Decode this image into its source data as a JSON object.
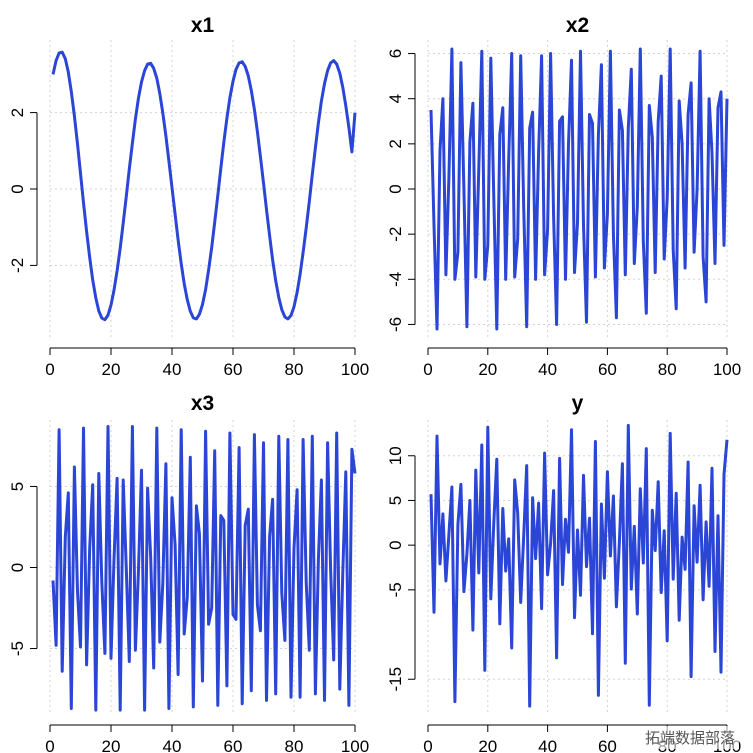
{
  "watermark": "拓端数据部落",
  "chart_data": [
    {
      "type": "line",
      "title": "x1",
      "xlabel": "",
      "ylabel": "",
      "xlim": [
        0,
        100
      ],
      "ylim": [
        -3.9,
        3.9
      ],
      "xticks": [
        0,
        20,
        40,
        60,
        80,
        100
      ],
      "yticks": [
        -2,
        0,
        2
      ],
      "color": "#2b45d6",
      "series": [
        {
          "x_start": 1,
          "x_end": 100,
          "n": 100,
          "values": [
            3.0,
            3.36,
            3.56,
            3.58,
            3.41,
            3.06,
            2.55,
            1.91,
            1.18,
            0.41,
            -0.36,
            -1.11,
            -1.79,
            -2.38,
            -2.85,
            -3.19,
            -3.38,
            -3.42,
            -3.3,
            -3.04,
            -2.65,
            -2.14,
            -1.55,
            -0.89,
            -0.19,
            0.52,
            1.2,
            1.83,
            2.37,
            2.8,
            3.1,
            3.27,
            3.29,
            3.16,
            2.9,
            2.5,
            1.99,
            1.39,
            0.73,
            0.04,
            -0.66,
            -1.33,
            -1.95,
            -2.48,
            -2.9,
            -3.2,
            -3.37,
            -3.4,
            -3.28,
            -3.02,
            -2.63,
            -2.12,
            -1.53,
            -0.87,
            -0.17,
            0.54,
            1.22,
            1.85,
            2.39,
            2.82,
            3.13,
            3.3,
            3.33,
            3.21,
            2.96,
            2.58,
            2.08,
            1.5,
            0.85,
            0.16,
            -0.54,
            -1.22,
            -1.85,
            -2.4,
            -2.84,
            -3.16,
            -3.35,
            -3.4,
            -3.31,
            -3.08,
            -2.71,
            -2.23,
            -1.66,
            -1.02,
            -0.33,
            0.38,
            1.08,
            1.73,
            2.3,
            2.76,
            3.1,
            3.3,
            3.36,
            3.27,
            3.03,
            2.66,
            2.18,
            1.61,
            0.97,
            2.0
          ]
        }
      ]
    },
    {
      "type": "line",
      "title": "x2",
      "xlabel": "",
      "ylabel": "",
      "xlim": [
        0,
        100
      ],
      "ylim": [
        -6.6,
        6.6
      ],
      "xticks": [
        0,
        20,
        40,
        60,
        80,
        100
      ],
      "yticks": [
        -6,
        -4,
        -2,
        0,
        2,
        4,
        6
      ],
      "color": "#2b45d6",
      "series": [
        {
          "x_start": 1,
          "x_end": 100,
          "n": 100,
          "values": [
            3.5,
            -1.6,
            -6.2,
            1.7,
            4.0,
            -3.8,
            0.5,
            6.2,
            -4.0,
            -2.8,
            5.6,
            0.0,
            -6.1,
            2.1,
            3.8,
            -3.9,
            0.9,
            6.1,
            -4.0,
            -2.5,
            5.8,
            -0.4,
            -6.2,
            2.4,
            3.6,
            -4.0,
            1.3,
            6.0,
            -3.9,
            -2.2,
            5.9,
            -0.8,
            -6.1,
            2.7,
            3.4,
            -4.0,
            1.6,
            5.9,
            -3.8,
            -1.8,
            6.0,
            -1.2,
            -6.0,
            3.0,
            3.2,
            -4.0,
            2.0,
            5.7,
            -3.7,
            -1.5,
            6.1,
            -1.6,
            -5.9,
            3.3,
            2.9,
            -3.9,
            2.4,
            5.5,
            -3.5,
            -1.1,
            6.1,
            -2.0,
            -5.7,
            3.5,
            2.6,
            -3.8,
            2.7,
            5.3,
            -3.3,
            -0.8,
            6.2,
            -2.3,
            -5.5,
            3.7,
            2.3,
            -3.7,
            3.0,
            5.0,
            -3.1,
            -0.4,
            6.2,
            -2.7,
            -5.3,
            3.9,
            2.0,
            -3.5,
            3.3,
            4.7,
            -2.8,
            0.0,
            6.1,
            -3.0,
            -5.0,
            4.0,
            1.6,
            -3.3,
            3.6,
            4.3,
            -2.5,
            4.0
          ]
        }
      ]
    },
    {
      "type": "line",
      "title": "x3",
      "xlabel": "",
      "ylabel": "",
      "xlim": [
        0,
        100
      ],
      "ylim": [
        -9.1,
        9.1
      ],
      "xticks": [
        0,
        20,
        40,
        60,
        80,
        100
      ],
      "yticks": [
        -5,
        0,
        5
      ],
      "color": "#2b45d6",
      "series": [
        {
          "x_start": 1,
          "x_end": 100,
          "n": 100,
          "values": [
            -0.8,
            -4.8,
            8.5,
            -6.4,
            1.9,
            4.6,
            -8.7,
            6.2,
            -1.5,
            -4.9,
            8.6,
            -6.0,
            1.2,
            5.1,
            -8.8,
            5.8,
            -0.9,
            -5.3,
            8.7,
            -5.6,
            0.5,
            5.5,
            -8.8,
            5.4,
            -0.1,
            -5.8,
            8.7,
            -5.1,
            -0.3,
            6.0,
            -8.8,
            4.9,
            0.6,
            -6.2,
            8.6,
            -4.6,
            -1.0,
            6.4,
            -8.7,
            4.3,
            1.4,
            -6.6,
            8.5,
            -4.1,
            -1.8,
            6.8,
            -8.6,
            3.8,
            2.1,
            -7.0,
            8.4,
            -3.5,
            -2.5,
            7.2,
            -8.5,
            3.2,
            2.9,
            -7.3,
            8.3,
            -2.9,
            -3.2,
            7.4,
            -8.4,
            2.6,
            3.6,
            -7.6,
            8.2,
            -2.3,
            -3.9,
            7.7,
            -8.2,
            1.9,
            4.2,
            -7.8,
            8.1,
            -1.6,
            -4.5,
            7.9,
            -8.0,
            1.2,
            4.8,
            -8.0,
            7.9,
            -0.9,
            -5.1,
            8.1,
            -7.8,
            0.5,
            5.4,
            -8.2,
            7.7,
            -0.1,
            -5.7,
            8.3,
            -7.5,
            -0.3,
            5.9,
            -8.5,
            7.3,
            5.8
          ]
        }
      ]
    },
    {
      "type": "line",
      "title": "y",
      "xlabel": "",
      "ylabel": "",
      "xlim": [
        0,
        100
      ],
      "ylim": [
        -19,
        14
      ],
      "xticks": [
        0,
        20,
        40,
        60,
        80,
        100
      ],
      "yticks": [
        -15,
        -5,
        0,
        5,
        10
      ],
      "color": "#2b45d6",
      "series": [
        {
          "x_start": 1,
          "x_end": 100,
          "n": 100,
          "values": [
            5.7,
            -7.5,
            12.2,
            -2.1,
            3.5,
            -4.0,
            1.2,
            6.5,
            -17.5,
            2.3,
            6.8,
            -5.2,
            -1.0,
            5.0,
            -9.5,
            8.4,
            -3.1,
            11.2,
            -14.0,
            13.2,
            -6.0,
            2.5,
            9.6,
            -8.8,
            4.1,
            -2.9,
            0.7,
            -11.5,
            7.3,
            3.6,
            -6.4,
            1.0,
            8.9,
            -18.0,
            5.3,
            -1.5,
            4.7,
            -7.1,
            10.3,
            -3.3,
            0.2,
            6.1,
            -12.6,
            9.7,
            -4.4,
            2.9,
            -0.8,
            12.9,
            -8.1,
            1.7,
            -5.6,
            7.8,
            -2.4,
            3.0,
            -9.9,
            11.6,
            -16.8,
            4.6,
            -3.7,
            8.2,
            -1.2,
            5.5,
            -6.9,
            0.4,
            9.1,
            -13.2,
            13.4,
            -4.9,
            2.1,
            -7.7,
            6.3,
            -2.0,
            10.8,
            -17.9,
            3.9,
            -0.6,
            7.1,
            -5.3,
            1.6,
            -10.7,
            12.5,
            -3.8,
            5.8,
            -8.4,
            0.9,
            -2.7,
            9.3,
            -14.7,
            4.4,
            -1.9,
            6.7,
            -6.1,
            2.6,
            -4.6,
            8.6,
            -11.9,
            3.3,
            -14.2,
            7.9,
            11.8
          ]
        }
      ]
    }
  ]
}
